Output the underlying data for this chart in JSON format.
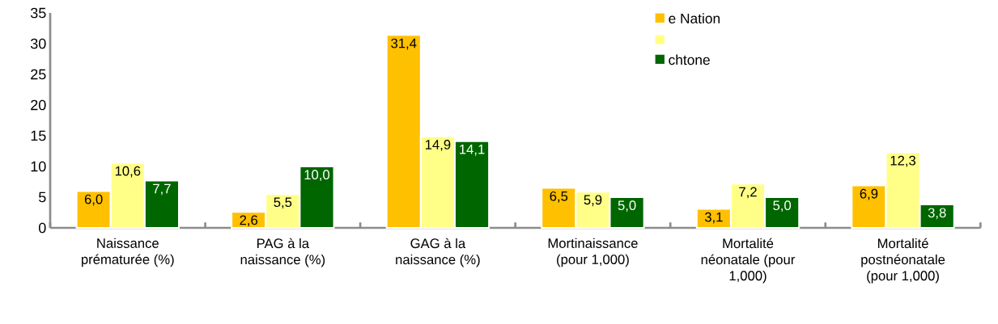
{
  "chart_data": {
    "type": "bar",
    "categories": [
      "Naissance prématurée (%)",
      "PAG à la naissance (%)",
      "GAG à la naissance (%)",
      "Mortinaissance (pour 1,000)",
      "Mortalité néonatale (pour 1,000)",
      "Mortalité postnéonatale (pour 1,000)"
    ],
    "series": [
      {
        "name": "e Nation",
        "color": "#ffc000",
        "values": [
          6.0,
          2.6,
          31.4,
          6.5,
          3.1,
          6.9
        ],
        "value_labels": [
          "6,0",
          "2,6",
          "31,4",
          "6,5",
          "3,1",
          "6,9"
        ]
      },
      {
        "color": "#ffff88",
        "values": [
          10.6,
          5.5,
          14.9,
          5.9,
          7.2,
          12.3
        ],
        "value_labels": [
          "10,6",
          "5,5",
          "14,9",
          "5,9",
          "7,2",
          "12,3"
        ]
      },
      {
        "name": "chtone",
        "color": "#006600",
        "values": [
          7.7,
          10.0,
          14.1,
          5.0,
          5.0,
          3.8
        ],
        "value_labels": [
          "7,7",
          "10,0",
          "14,1",
          "5,0",
          "5,0",
          "3,8"
        ]
      }
    ],
    "ylim": [
      0,
      35
    ],
    "yticks": [
      0,
      5,
      10,
      15,
      20,
      25,
      30,
      35
    ],
    "legend": "top right",
    "grid": false
  }
}
